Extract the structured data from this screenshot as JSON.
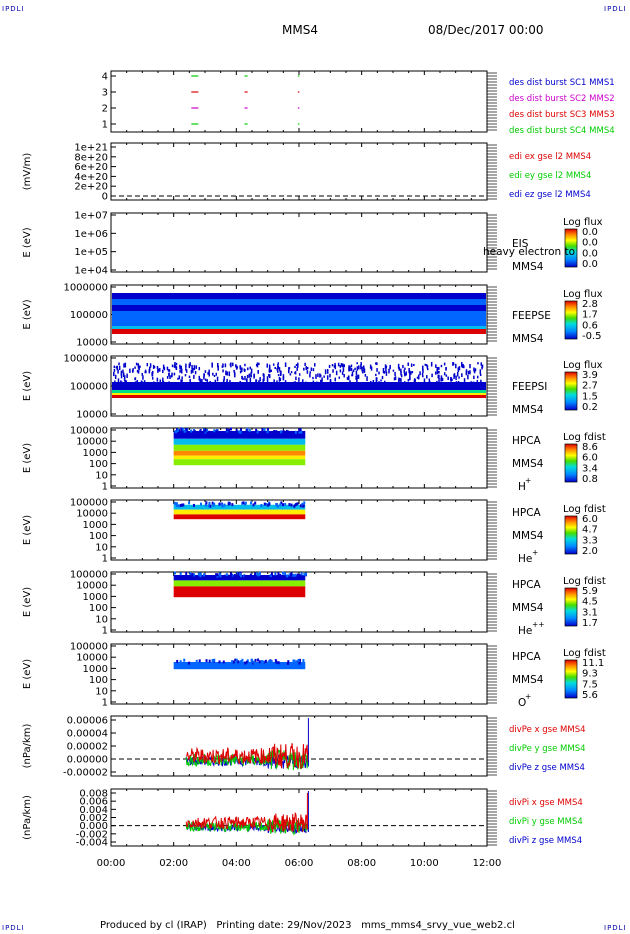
{
  "header": {
    "title": "MMS4",
    "date": "08/Dec/2017 00:00"
  },
  "corners": {
    "tl": "IPDLI",
    "tr": "IPDLI",
    "bl": "IPDLI",
    "br": "IPDLI"
  },
  "footer": {
    "produced_by": "Produced by cl (IRAP)",
    "printing_date": "Printing date: 29/Nov/2023",
    "file": "mms_mms4_srvy_vue_web2.cl"
  },
  "colors": {
    "red": "#dd0000",
    "magenta": "#cc00cc",
    "green": "#00cc00",
    "blue": "#0000cc",
    "dark_red": "#aa0000"
  },
  "time_axis": {
    "ticks": [
      "00:00",
      "02:00",
      "04:00",
      "06:00",
      "08:00",
      "10:00",
      "12:00"
    ],
    "range_hours": [
      0,
      12
    ]
  },
  "chart_data": [
    {
      "id": "burst",
      "type": "scatter",
      "y_ticks": [
        "4",
        "3",
        "2",
        "1"
      ],
      "ylim": [
        0.5,
        4.5
      ],
      "ylabel": "",
      "series": [
        {
          "name": "des dist burst SC1 MMS1",
          "color": "#00cc00",
          "y": 4,
          "x_hours": [
            2.5,
            4.2,
            5.9
          ]
        },
        {
          "name": "des dist burst SC2 MMS2",
          "color": "#dd0000",
          "y": 3,
          "x_hours": [
            2.5,
            4.2,
            5.9
          ]
        },
        {
          "name": "des dist burst SC3 MMS3",
          "color": "#cc00cc",
          "y": 2,
          "x_hours": [
            2.5,
            4.2,
            5.9
          ]
        },
        {
          "name": "des dist burst SC4 MMS4",
          "color": "#00cc00",
          "y": 1,
          "x_hours": [
            2.5,
            4.2,
            5.9
          ]
        }
      ],
      "legend_colors": [
        "#0000cc",
        "#cc00cc",
        "#dd0000",
        "#00cc00"
      ]
    },
    {
      "id": "edi",
      "type": "line",
      "ylabel": "(mV/m)",
      "y_ticks": [
        "1e+21",
        "8e+20",
        "6e+20",
        "4e+20",
        "2e+20",
        "0"
      ],
      "ylim": [
        0,
        1e+21
      ],
      "dashed_zero": true,
      "series": [
        {
          "name": "edi ex gse l2 MMS4",
          "color": "#dd0000"
        },
        {
          "name": "edi ey gse l2 MMS4",
          "color": "#00cc00"
        },
        {
          "name": "edi ez gse l2 MMS4",
          "color": "#0000cc"
        }
      ]
    },
    {
      "id": "eis",
      "type": "heatmap",
      "ylabel": "E (eV)",
      "y_ticks": [
        "1e+07",
        "1e+06",
        "1e+05",
        "1e+04"
      ],
      "label1": "EIS",
      "label2": "MMS4",
      "overlay": "heavy electron to",
      "cbar_title": "Log flux",
      "cbar_ticks": [
        "0.0",
        "0.0",
        "0.0",
        "0.0"
      ]
    },
    {
      "id": "feepse",
      "type": "heatmap",
      "ylabel": "E (eV)",
      "y_ticks": [
        "1000000",
        "100000",
        "10000"
      ],
      "label1": "FEEPSE",
      "label2": "MMS4",
      "cbar_title": "Log flux",
      "cbar_ticks": [
        "2.8",
        "1.7",
        "0.6",
        "-0.5"
      ],
      "time_range_hours": [
        0,
        12
      ]
    },
    {
      "id": "feepsi",
      "type": "heatmap",
      "ylabel": "E (eV)",
      "y_ticks": [
        "1000000",
        "100000",
        "10000"
      ],
      "label1": "FEEPSI",
      "label2": "MMS4",
      "cbar_title": "Log flux",
      "cbar_ticks": [
        "3.9",
        "2.7",
        "1.5",
        "0.2"
      ],
      "time_range_hours": [
        0,
        12
      ]
    },
    {
      "id": "hpca_h",
      "type": "heatmap",
      "ylabel": "E (eV)",
      "y_ticks": [
        "100000",
        "10000",
        "1000",
        "100",
        "10",
        "1"
      ],
      "label1": "HPCA",
      "label2": "MMS4",
      "species": "H",
      "species_sup": "+",
      "cbar_title": "Log fdist",
      "cbar_ticks": [
        "8.6",
        "6.0",
        "3.4",
        "0.8"
      ],
      "time_range_hours": [
        2.0,
        6.2
      ]
    },
    {
      "id": "hpca_he1",
      "type": "heatmap",
      "ylabel": "E (eV)",
      "y_ticks": [
        "100000",
        "10000",
        "1000",
        "100",
        "10",
        "1"
      ],
      "label1": "HPCA",
      "label2": "MMS4",
      "species": "He",
      "species_sup": "+",
      "cbar_title": "Log fdist",
      "cbar_ticks": [
        "6.0",
        "4.7",
        "3.3",
        "2.0"
      ],
      "time_range_hours": [
        2.0,
        6.2
      ]
    },
    {
      "id": "hpca_he2",
      "type": "heatmap",
      "ylabel": "E (eV)",
      "y_ticks": [
        "100000",
        "10000",
        "1000",
        "100",
        "10",
        "1"
      ],
      "label1": "HPCA",
      "label2": "MMS4",
      "species": "He",
      "species_sup": "++",
      "cbar_title": "Log fdist",
      "cbar_ticks": [
        "5.9",
        "4.5",
        "3.1",
        "1.7"
      ],
      "time_range_hours": [
        2.0,
        6.2
      ]
    },
    {
      "id": "hpca_o",
      "type": "heatmap",
      "ylabel": "E (eV)",
      "y_ticks": [
        "100000",
        "10000",
        "1000",
        "100",
        "10",
        "1"
      ],
      "label1": "HPCA",
      "label2": "MMS4",
      "species": "O",
      "species_sup": "+",
      "cbar_title": "Log fdist",
      "cbar_ticks": [
        "11.1",
        "9.3",
        "7.5",
        "5.6"
      ],
      "time_range_hours": [
        2.0,
        6.2
      ]
    },
    {
      "id": "divpe",
      "type": "line",
      "ylabel": "(nPa/km)",
      "y_ticks": [
        "0.00006",
        "0.00004",
        "0.00002",
        "0.00000",
        "-0.00002"
      ],
      "ylim": [
        -3e-05,
        6e-05
      ],
      "dashed_zero": true,
      "time_range_hours": [
        2.4,
        6.3
      ],
      "series": [
        {
          "name": "divPe x gse MMS4",
          "color": "#dd0000"
        },
        {
          "name": "divPe y gse MMS4",
          "color": "#00cc00"
        },
        {
          "name": "divPe z gse MMS4",
          "color": "#0000cc"
        }
      ]
    },
    {
      "id": "divpi",
      "type": "line",
      "ylabel": "(nPa/km)",
      "y_ticks": [
        "0.008",
        "0.006",
        "0.004",
        "0.002",
        "0.000",
        "-0.002",
        "-0.004"
      ],
      "ylim": [
        -0.005,
        0.008
      ],
      "dashed_zero": true,
      "time_range_hours": [
        2.4,
        6.3
      ],
      "series": [
        {
          "name": "divPi x gse MMS4",
          "color": "#dd0000"
        },
        {
          "name": "divPi y gse MMS4",
          "color": "#00cc00"
        },
        {
          "name": "divPi z gse MMS4",
          "color": "#0000cc"
        }
      ]
    }
  ]
}
